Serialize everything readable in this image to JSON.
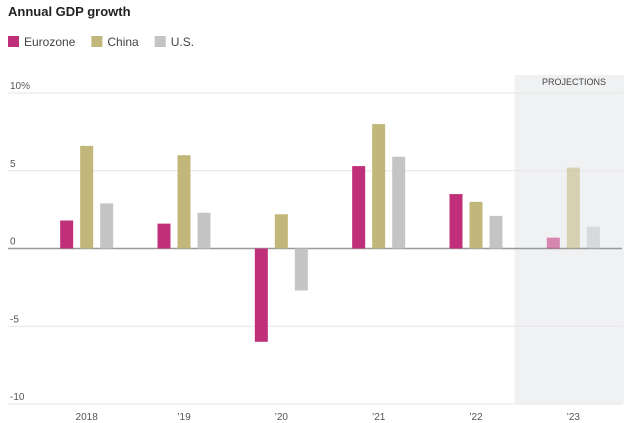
{
  "chart_data": {
    "type": "bar",
    "title": "Annual GDP growth",
    "categories": [
      "2018",
      "’19",
      "’20",
      "’21",
      "’22",
      "’23"
    ],
    "series": [
      {
        "name": "Eurozone",
        "color": "#c0307a",
        "values": [
          1.8,
          1.6,
          -6.0,
          5.3,
          3.5,
          0.7
        ]
      },
      {
        "name": "China",
        "color": "#c2b77a",
        "values": [
          6.6,
          6.0,
          2.2,
          8.0,
          3.0,
          5.2
        ]
      },
      {
        "name": "U.S.",
        "color": "#c4c4c4",
        "values": [
          2.9,
          2.3,
          -2.7,
          5.9,
          2.1,
          1.4
        ]
      }
    ],
    "ylim": [
      -10,
      10
    ],
    "yticks": [
      {
        "value": 10,
        "label": "10%"
      },
      5,
      0,
      -5,
      -10
    ],
    "grid": true,
    "projection": {
      "label": "PROJECTIONS",
      "start": 5
    }
  }
}
